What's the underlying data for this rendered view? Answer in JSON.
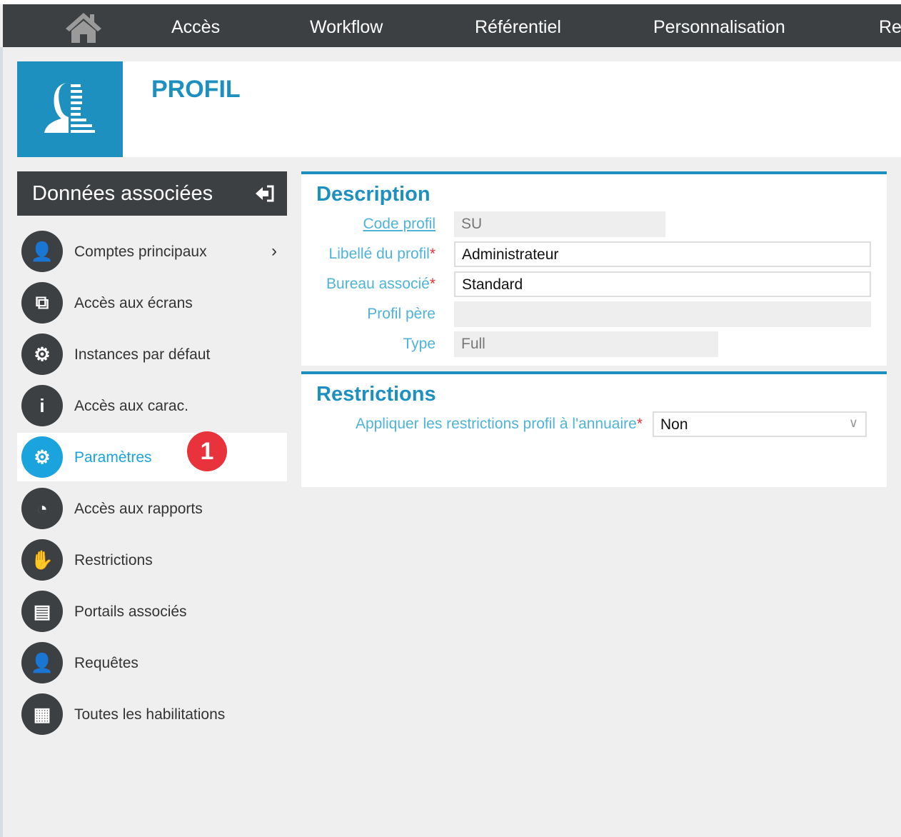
{
  "nav": {
    "items": [
      "Accès",
      "Workflow",
      "Référentiel",
      "Personnalisation",
      "Re"
    ]
  },
  "header": {
    "title": "PROFIL"
  },
  "sidebar": {
    "title": "Données associées",
    "items": [
      {
        "label": "Comptes principaux",
        "icon": "user-icon"
      },
      {
        "label": "Accès aux écrans",
        "icon": "windows-icon"
      },
      {
        "label": "Instances par défaut",
        "icon": "screen-gear-icon"
      },
      {
        "label": "Accès aux carac.",
        "icon": "info-icon"
      },
      {
        "label": "Paramètres",
        "icon": "gear-icon",
        "active": true
      },
      {
        "label": "Accès aux rapports",
        "icon": "pie-chart-icon"
      },
      {
        "label": "Restrictions",
        "icon": "hand-icon"
      },
      {
        "label": "Portails associés",
        "icon": "portal-icon"
      },
      {
        "label": "Requêtes",
        "icon": "user-query-icon"
      },
      {
        "label": "Toutes les habilitations",
        "icon": "buildings-icon"
      }
    ]
  },
  "badge": "1",
  "description": {
    "title": "Description",
    "fields": [
      {
        "label": "Code profil",
        "value": "SU"
      },
      {
        "label": "Libellé du profil",
        "value": "Administrateur",
        "required": true
      },
      {
        "label": "Bureau associé",
        "value": "Standard",
        "required": true
      },
      {
        "label": "Profil père",
        "value": ""
      },
      {
        "label": "Type",
        "value": "Full"
      }
    ]
  },
  "restrictions": {
    "title": "Restrictions",
    "label": "Appliquer les restrictions profil à l'annuaire",
    "value": "Non",
    "required_mark": "*"
  },
  "colors": {
    "accent": "#1e90c0",
    "dark": "#3d4043",
    "badge": "#e8323c",
    "active": "#1aa3dc"
  }
}
